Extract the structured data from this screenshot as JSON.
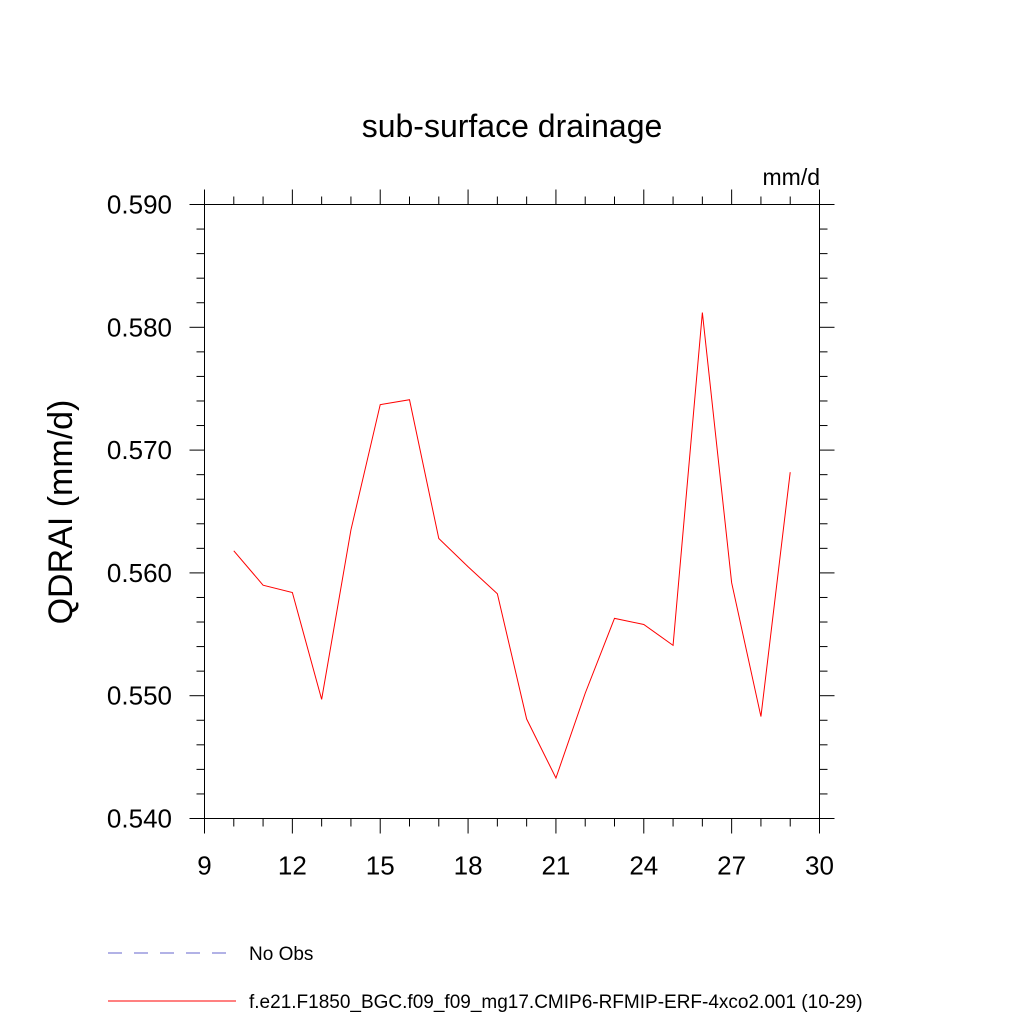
{
  "chart_data": {
    "type": "line",
    "title": "sub-surface drainage",
    "units": "mm/d",
    "xlabel": "",
    "ylabel": "QDRAI  (mm/d)",
    "xlim": [
      9,
      30
    ],
    "ylim": [
      0.54,
      0.59
    ],
    "x_ticks": [
      "9",
      "12",
      "15",
      "18",
      "21",
      "24",
      "27",
      "30"
    ],
    "y_ticks": [
      "0.540",
      "0.550",
      "0.560",
      "0.570",
      "0.580",
      "0.590"
    ],
    "grid": false,
    "legend_position": "bottom",
    "series": [
      {
        "name": "f.e21.F1850_BGC.f09_f09_mg17.CMIP6-RFMIP-ERF-4xco2.001 (10-29)",
        "color": "#ff0000",
        "style": "solid",
        "x": [
          10,
          11,
          12,
          13,
          14,
          15,
          16,
          17,
          18,
          19,
          20,
          21,
          22,
          23,
          24,
          25,
          26,
          27,
          28,
          29
        ],
        "values": [
          0.5618,
          0.559,
          0.5584,
          0.5497,
          0.5635,
          0.5737,
          0.5741,
          0.5628,
          0.5605,
          0.5583,
          0.5481,
          0.5433,
          0.5502,
          0.5563,
          0.5558,
          0.5541,
          0.5812,
          0.5592,
          0.5483,
          0.5682
        ]
      }
    ],
    "legend": [
      {
        "label": "No Obs",
        "color": "#6666cc",
        "style": "dashed"
      },
      {
        "label": "f.e21.F1850_BGC.f09_f09_mg17.CMIP6-RFMIP-ERF-4xco2.001 (10-29)",
        "color": "#ff0000",
        "style": "solid"
      }
    ]
  }
}
